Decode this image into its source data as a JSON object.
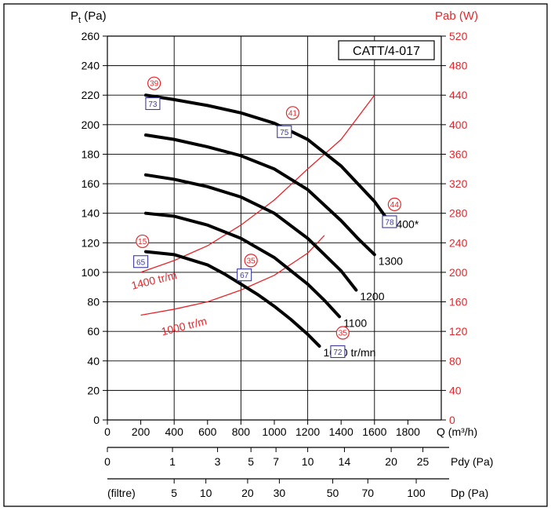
{
  "chart_data": {
    "type": "line",
    "title": "CATT/4-017",
    "xlabel": "Q (m³/h)",
    "ylabel": "P",
    "ylabel_sub": "t",
    "ylabel_unit": "(Pa)",
    "y2label": "Pab (W)",
    "xlim": [
      0,
      2000
    ],
    "ylim": [
      0,
      260
    ],
    "y2lim": [
      0,
      520
    ],
    "grid": true,
    "x_ticks": [
      0,
      200,
      400,
      600,
      800,
      1000,
      1200,
      1400,
      1600,
      1800
    ],
    "y_ticks": [
      0,
      20,
      40,
      60,
      80,
      100,
      120,
      140,
      160,
      180,
      200,
      220,
      240,
      260
    ],
    "y2_ticks": [
      0,
      40,
      80,
      120,
      160,
      200,
      240,
      280,
      320,
      360,
      400,
      440,
      480,
      520
    ],
    "x_tick_labels": [
      "0",
      "200",
      "400",
      "600",
      "800",
      "1000",
      "1200",
      "1400",
      "1600",
      "1800",
      "Q (m³/h)"
    ],
    "y_tick_labels": [
      "0",
      "20",
      "40",
      "60",
      "80",
      "100",
      "120",
      "140",
      "160",
      "180",
      "200",
      "220",
      "240",
      "260"
    ],
    "y2_tick_labels": [
      "0",
      "40",
      "80",
      "120",
      "160",
      "200",
      "240",
      "280",
      "320",
      "360",
      "400",
      "440",
      "480",
      "520"
    ],
    "series": [
      {
        "name": "1400*",
        "x": [
          230,
          400,
          600,
          800,
          1000,
          1200,
          1400,
          1600,
          1670
        ],
        "y": [
          220,
          217,
          213,
          208,
          201,
          190,
          172,
          148,
          137
        ]
      },
      {
        "name": "1300",
        "x": [
          230,
          400,
          600,
          800,
          1000,
          1200,
          1400,
          1500,
          1600
        ],
        "y": [
          193,
          190,
          185,
          179,
          170,
          156,
          135,
          123,
          112
        ]
      },
      {
        "name": "1200",
        "x": [
          230,
          400,
          600,
          800,
          1000,
          1200,
          1300,
          1400,
          1490
        ],
        "y": [
          166,
          163,
          158,
          151,
          140,
          123,
          112,
          101,
          88
        ]
      },
      {
        "name": "1100",
        "x": [
          230,
          400,
          600,
          800,
          1000,
          1100,
          1200,
          1300,
          1390
        ],
        "y": [
          140,
          138,
          132,
          123,
          110,
          101,
          92,
          81,
          70
        ]
      },
      {
        "name": "1000 tr/mn",
        "x": [
          230,
          400,
          600,
          700,
          800,
          900,
          1000,
          1100,
          1200,
          1270
        ],
        "y": [
          114,
          112,
          105,
          99,
          92,
          85,
          77,
          68,
          58,
          50
        ]
      }
    ],
    "power_curves": [
      {
        "name": "1400 tr/m",
        "x": [
          200,
          400,
          600,
          800,
          1000,
          1200,
          1400,
          1600
        ],
        "y": [
          200,
          216,
          236,
          264,
          298,
          340,
          380,
          440
        ]
      },
      {
        "name": "1000 tr/m",
        "x": [
          200,
          400,
          600,
          800,
          1000,
          1200,
          1300
        ],
        "y": [
          142,
          150,
          160,
          176,
          196,
          226,
          250
        ]
      }
    ],
    "efficiency_markers": [
      {
        "label": "39",
        "shape": "circle",
        "x": 280,
        "y": 228
      },
      {
        "label": "73",
        "shape": "square",
        "x": 272,
        "y": 214
      },
      {
        "label": "41",
        "shape": "circle",
        "x": 1110,
        "y": 208
      },
      {
        "label": "75",
        "shape": "square",
        "x": 1060,
        "y": 195
      },
      {
        "label": "44",
        "shape": "circle",
        "x": 1720,
        "y": 146
      },
      {
        "label": "78",
        "shape": "square",
        "x": 1690,
        "y": 134
      },
      {
        "label": "15",
        "shape": "circle",
        "x": 210,
        "y": 121
      },
      {
        "label": "65",
        "shape": "square",
        "x": 200,
        "y": 107
      },
      {
        "label": "35",
        "shape": "circle",
        "x": 860,
        "y": 108
      },
      {
        "label": "67",
        "shape": "square",
        "x": 820,
        "y": 98
      },
      {
        "label": "35",
        "shape": "circle",
        "x": 1410,
        "y": 59
      },
      {
        "label": "72",
        "shape": "square",
        "x": 1380,
        "y": 46
      }
    ],
    "pdy_scale": {
      "label": "Pdy (Pa)",
      "ticks": [
        {
          "label": "0",
          "x": 0
        },
        {
          "label": "1",
          "x": 390
        },
        {
          "label": "3",
          "x": 660
        },
        {
          "label": "5",
          "x": 860
        },
        {
          "label": "7",
          "x": 1010
        },
        {
          "label": "10",
          "x": 1200
        },
        {
          "label": "14",
          "x": 1420
        },
        {
          "label": "20",
          "x": 1700
        },
        {
          "label": "25",
          "x": 1890
        }
      ]
    },
    "dp_scale": {
      "label": "Dp (Pa)",
      "prefix": "(filtre)",
      "ticks": [
        {
          "label": "5",
          "x": 400
        },
        {
          "label": "10",
          "x": 590
        },
        {
          "label": "20",
          "x": 840
        },
        {
          "label": "30",
          "x": 1030
        },
        {
          "label": "50",
          "x": 1350
        },
        {
          "label": "70",
          "x": 1560
        },
        {
          "label": "100",
          "x": 1850
        }
      ]
    }
  }
}
